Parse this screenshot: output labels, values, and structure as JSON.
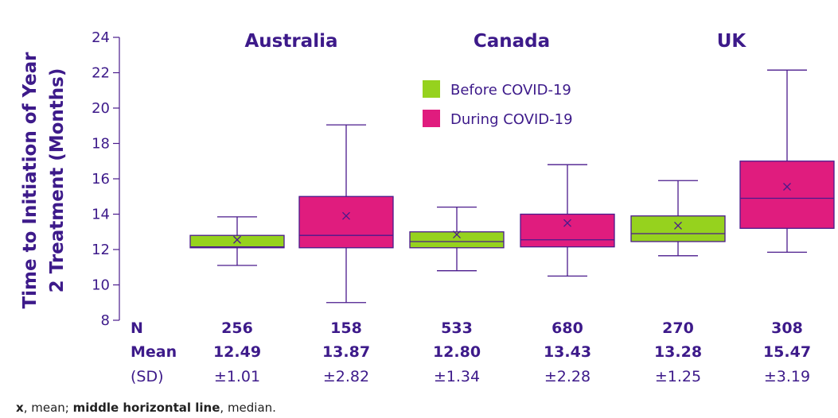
{
  "chart_data": {
    "type": "boxplot",
    "title": "",
    "ylabel_lines": [
      "Time to Initiation of Year",
      "2 Treatment (Months)"
    ],
    "ylim": [
      8,
      24
    ],
    "yticks": [
      8,
      10,
      12,
      14,
      16,
      18,
      20,
      22,
      24
    ],
    "groups": [
      "Australia",
      "Canada",
      "UK"
    ],
    "legend": {
      "placement": "top-center",
      "entries": [
        {
          "label": "Before COVID-19",
          "color": "#96d21e"
        },
        {
          "label": "During COVID-19",
          "color": "#e01c7e"
        }
      ]
    },
    "colors": {
      "axis": "#4a1a8c",
      "text": "#3d1a8a",
      "box_edge": "#4a1a8c"
    },
    "series": [
      {
        "name": "Before COVID-19",
        "group": "Australia",
        "whisker_low": 11.1,
        "q1": 12.1,
        "median": 12.15,
        "q3": 12.8,
        "whisker_high": 13.85,
        "mean_marker": 12.55
      },
      {
        "name": "During COVID-19",
        "group": "Australia",
        "whisker_low": 9.0,
        "q1": 12.1,
        "median": 12.8,
        "q3": 15.0,
        "whisker_high": 19.05,
        "mean_marker": 13.9
      },
      {
        "name": "Before COVID-19",
        "group": "Canada",
        "whisker_low": 10.8,
        "q1": 12.1,
        "median": 12.45,
        "q3": 13.0,
        "whisker_high": 14.4,
        "mean_marker": 12.85
      },
      {
        "name": "During COVID-19",
        "group": "Canada",
        "whisker_low": 10.5,
        "q1": 12.15,
        "median": 12.55,
        "q3": 14.0,
        "whisker_high": 16.8,
        "mean_marker": 13.5
      },
      {
        "name": "Before COVID-19",
        "group": "UK",
        "whisker_low": 11.65,
        "q1": 12.45,
        "median": 12.9,
        "q3": 13.9,
        "whisker_high": 15.9,
        "mean_marker": 13.35
      },
      {
        "name": "During COVID-19",
        "group": "UK",
        "whisker_low": 11.85,
        "q1": 13.2,
        "median": 14.9,
        "q3": 17.0,
        "whisker_high": 22.15,
        "mean_marker": 15.55
      }
    ],
    "stats_table": {
      "row_labels": [
        "N",
        "Mean",
        "(SD)"
      ],
      "columns": [
        {
          "n": "256",
          "mean": "12.49",
          "sd": "±1.01"
        },
        {
          "n": "158",
          "mean": "13.87",
          "sd": "±2.82"
        },
        {
          "n": "533",
          "mean": "12.80",
          "sd": "±1.34"
        },
        {
          "n": "680",
          "mean": "13.43",
          "sd": "±2.28"
        },
        {
          "n": "270",
          "mean": "13.28",
          "sd": "±1.25"
        },
        {
          "n": "308",
          "mean": "15.47",
          "sd": "±3.19"
        }
      ]
    }
  },
  "footnote": {
    "mean_symbol": "x",
    "mean_text": ", mean; ",
    "median_term": "middle horizontal line",
    "median_text": ", median."
  }
}
